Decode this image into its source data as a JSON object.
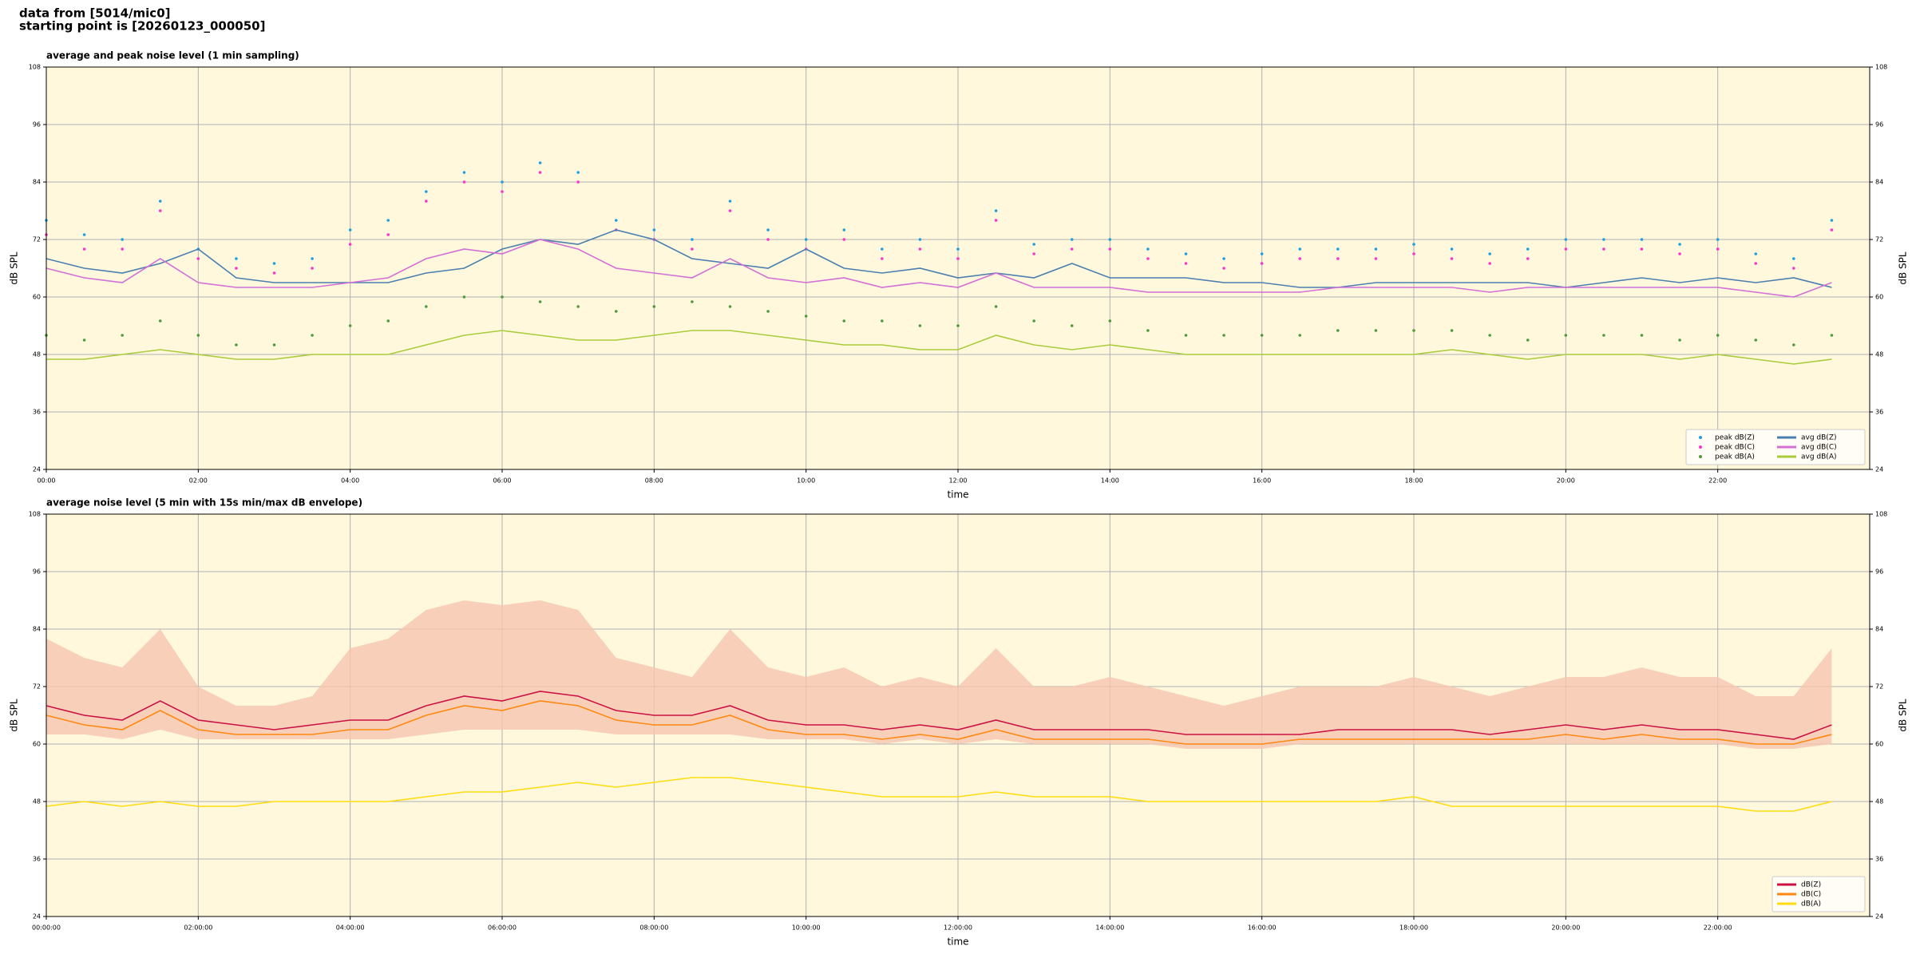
{
  "header": {
    "source": "data from [5014/mic0]",
    "start": "starting point is [20260123_000050]"
  },
  "chart_data": [
    {
      "type": "line",
      "title": "average and peak noise level (1 min sampling)",
      "xlabel": "time",
      "ylabel": "dB SPL",
      "xlim": [
        0,
        24
      ],
      "ylim": [
        24,
        108
      ],
      "yticks": [
        24,
        36,
        48,
        60,
        72,
        84,
        96,
        108
      ],
      "xticks": [
        {
          "value": 0,
          "label": "00:00"
        },
        {
          "value": 2,
          "label": "02:00"
        },
        {
          "value": 4,
          "label": "04:00"
        },
        {
          "value": 6,
          "label": "06:00"
        },
        {
          "value": 8,
          "label": "08:00"
        },
        {
          "value": 10,
          "label": "10:00"
        },
        {
          "value": 12,
          "label": "12:00"
        },
        {
          "value": 14,
          "label": "14:00"
        },
        {
          "value": 16,
          "label": "16:00"
        },
        {
          "value": 18,
          "label": "18:00"
        },
        {
          "value": 20,
          "label": "20:00"
        },
        {
          "value": 22,
          "label": "22:00"
        }
      ],
      "grid": true,
      "legend": "lower right",
      "legend_columns": 2,
      "x": [
        0,
        0.5,
        1,
        1.5,
        2,
        2.5,
        3,
        3.5,
        4,
        4.5,
        5,
        5.5,
        6,
        6.5,
        7,
        7.5,
        8,
        8.5,
        9,
        9.5,
        10,
        10.5,
        11,
        11.5,
        12,
        12.5,
        13,
        13.5,
        14,
        14.5,
        15,
        15.5,
        16,
        16.5,
        17,
        17.5,
        18,
        18.5,
        19,
        19.5,
        20,
        20.5,
        21,
        21.5,
        22,
        22.5,
        23,
        23.5
      ],
      "series": [
        {
          "name": "peak dB(Z)",
          "style": "scatter",
          "color": "#1f9ee0",
          "values": [
            76,
            73,
            72,
            80,
            70,
            68,
            67,
            68,
            74,
            76,
            82,
            86,
            84,
            88,
            86,
            76,
            74,
            72,
            80,
            74,
            72,
            74,
            70,
            72,
            70,
            78,
            71,
            72,
            72,
            70,
            69,
            68,
            69,
            70,
            70,
            70,
            71,
            70,
            69,
            70,
            72,
            72,
            72,
            71,
            72,
            69,
            68,
            76
          ]
        },
        {
          "name": "peak dB(C)",
          "style": "scatter",
          "color": "#ff33cc",
          "values": [
            73,
            70,
            70,
            78,
            68,
            66,
            65,
            66,
            71,
            73,
            80,
            84,
            82,
            86,
            84,
            74,
            72,
            70,
            78,
            72,
            70,
            72,
            68,
            70,
            68,
            76,
            69,
            70,
            70,
            68,
            67,
            66,
            67,
            68,
            68,
            68,
            69,
            68,
            67,
            68,
            70,
            70,
            70,
            69,
            70,
            67,
            66,
            74
          ]
        },
        {
          "name": "peak dB(A)",
          "style": "scatter",
          "color": "#4f9a3c",
          "values": [
            52,
            51,
            52,
            55,
            52,
            50,
            50,
            52,
            54,
            55,
            58,
            60,
            60,
            59,
            58,
            57,
            58,
            59,
            58,
            57,
            56,
            55,
            55,
            54,
            54,
            58,
            55,
            54,
            55,
            53,
            52,
            52,
            52,
            52,
            53,
            53,
            53,
            53,
            52,
            51,
            52,
            52,
            52,
            51,
            52,
            51,
            50,
            52
          ]
        },
        {
          "name": "avg dB(Z)",
          "style": "line",
          "color": "#4a7fb0",
          "values": [
            68,
            66,
            65,
            67,
            70,
            64,
            63,
            63,
            63,
            63,
            65,
            66,
            70,
            72,
            71,
            74,
            72,
            68,
            67,
            66,
            70,
            66,
            65,
            66,
            64,
            65,
            64,
            67,
            64,
            64,
            64,
            63,
            63,
            62,
            62,
            63,
            63,
            63,
            63,
            63,
            62,
            63,
            64,
            63,
            64,
            63,
            64,
            62
          ]
        },
        {
          "name": "avg dB(C)",
          "style": "line",
          "color": "#d36fd6",
          "values": [
            66,
            64,
            63,
            68,
            63,
            62,
            62,
            62,
            63,
            64,
            68,
            70,
            69,
            72,
            70,
            66,
            65,
            64,
            68,
            64,
            63,
            64,
            62,
            63,
            62,
            65,
            62,
            62,
            62,
            61,
            61,
            61,
            61,
            61,
            62,
            62,
            62,
            62,
            61,
            62,
            62,
            62,
            62,
            62,
            62,
            61,
            60,
            63
          ]
        },
        {
          "name": "avg dB(A)",
          "style": "line",
          "color": "#a8cc3c",
          "values": [
            47,
            47,
            48,
            49,
            48,
            47,
            47,
            48,
            48,
            48,
            50,
            52,
            53,
            52,
            51,
            51,
            52,
            53,
            53,
            52,
            51,
            50,
            50,
            49,
            49,
            52,
            50,
            49,
            50,
            49,
            48,
            48,
            48,
            48,
            48,
            48,
            48,
            49,
            48,
            47,
            48,
            48,
            48,
            47,
            48,
            47,
            46,
            47
          ]
        }
      ]
    },
    {
      "type": "line",
      "title": "average noise level (5 min with 15s min/max dB envelope)",
      "xlabel": "time",
      "ylabel": "dB SPL",
      "xlim": [
        0,
        24
      ],
      "ylim": [
        24,
        108
      ],
      "yticks": [
        24,
        36,
        48,
        60,
        72,
        84,
        96,
        108
      ],
      "xticks": [
        {
          "value": 0,
          "label": "00:00:00"
        },
        {
          "value": 2,
          "label": "02:00:00"
        },
        {
          "value": 4,
          "label": "04:00:00"
        },
        {
          "value": 6,
          "label": "06:00:00"
        },
        {
          "value": 8,
          "label": "08:00:00"
        },
        {
          "value": 10,
          "label": "10:00:00"
        },
        {
          "value": 12,
          "label": "12:00:00"
        },
        {
          "value": 14,
          "label": "14:00:00"
        },
        {
          "value": 16,
          "label": "16:00:00"
        },
        {
          "value": 18,
          "label": "18:00:00"
        },
        {
          "value": 20,
          "label": "20:00:00"
        },
        {
          "value": 22,
          "label": "22:00:00"
        }
      ],
      "grid": true,
      "legend": "lower right",
      "legend_columns": 1,
      "x": [
        0,
        0.5,
        1,
        1.5,
        2,
        2.5,
        3,
        3.5,
        4,
        4.5,
        5,
        5.5,
        6,
        6.5,
        7,
        7.5,
        8,
        8.5,
        9,
        9.5,
        10,
        10.5,
        11,
        11.5,
        12,
        12.5,
        13,
        13.5,
        14,
        14.5,
        15,
        15.5,
        16,
        16.5,
        17,
        17.5,
        18,
        18.5,
        19,
        19.5,
        20,
        20.5,
        21,
        21.5,
        22,
        22.5,
        23,
        23.5
      ],
      "band": {
        "color": "#f6c6b0",
        "upper": [
          82,
          78,
          76,
          84,
          72,
          68,
          68,
          70,
          80,
          82,
          88,
          90,
          89,
          90,
          88,
          78,
          76,
          74,
          84,
          76,
          74,
          76,
          72,
          74,
          72,
          80,
          72,
          72,
          74,
          72,
          70,
          68,
          70,
          72,
          72,
          72,
          74,
          72,
          70,
          72,
          74,
          74,
          76,
          74,
          74,
          70,
          70,
          80
        ],
        "lower": [
          62,
          62,
          61,
          63,
          61,
          61,
          61,
          61,
          61,
          61,
          62,
          63,
          63,
          63,
          63,
          62,
          62,
          62,
          62,
          61,
          61,
          61,
          60,
          61,
          60,
          61,
          60,
          60,
          60,
          60,
          59,
          59,
          59,
          60,
          60,
          60,
          60,
          60,
          60,
          60,
          60,
          60,
          60,
          60,
          60,
          59,
          59,
          60
        ]
      },
      "series": [
        {
          "name": "dB(Z)",
          "style": "line",
          "color": "#cc1144",
          "values": [
            68,
            66,
            65,
            69,
            65,
            64,
            63,
            64,
            65,
            65,
            68,
            70,
            69,
            71,
            70,
            67,
            66,
            66,
            68,
            65,
            64,
            64,
            63,
            64,
            63,
            65,
            63,
            63,
            63,
            63,
            62,
            62,
            62,
            62,
            63,
            63,
            63,
            63,
            62,
            63,
            64,
            63,
            64,
            63,
            63,
            62,
            61,
            64
          ]
        },
        {
          "name": "dB(C)",
          "style": "line",
          "color": "#ff8811",
          "values": [
            66,
            64,
            63,
            67,
            63,
            62,
            62,
            62,
            63,
            63,
            66,
            68,
            67,
            69,
            68,
            65,
            64,
            64,
            66,
            63,
            62,
            62,
            61,
            62,
            61,
            63,
            61,
            61,
            61,
            61,
            60,
            60,
            60,
            61,
            61,
            61,
            61,
            61,
            61,
            61,
            62,
            61,
            62,
            61,
            61,
            60,
            60,
            62
          ]
        },
        {
          "name": "dB(A)",
          "style": "line",
          "color": "#ffdd11",
          "values": [
            47,
            48,
            47,
            48,
            47,
            47,
            48,
            48,
            48,
            48,
            49,
            50,
            50,
            51,
            52,
            51,
            52,
            53,
            53,
            52,
            51,
            50,
            49,
            49,
            49,
            50,
            49,
            49,
            49,
            48,
            48,
            48,
            48,
            48,
            48,
            48,
            49,
            47,
            47,
            47,
            47,
            47,
            47,
            47,
            47,
            46,
            46,
            48
          ]
        }
      ]
    }
  ]
}
